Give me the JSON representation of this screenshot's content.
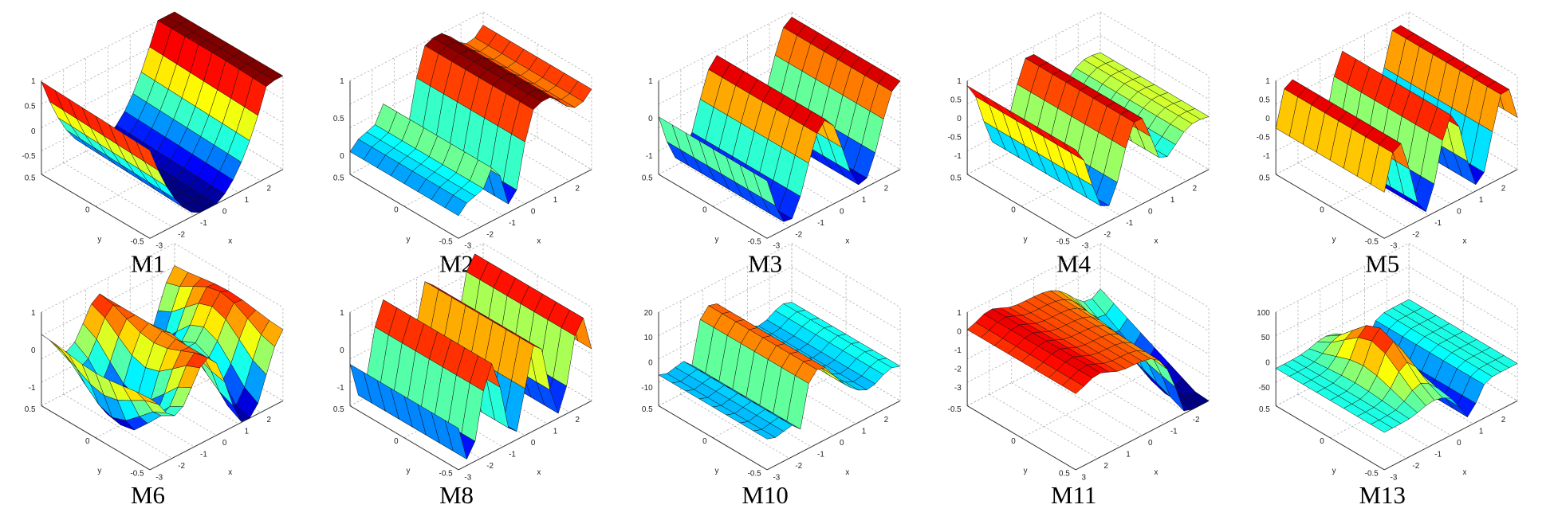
{
  "panels": [
    {
      "label": "M1",
      "zticks": [
        1,
        0.5,
        0,
        -0.5
      ],
      "yticks": [
        0.5,
        0,
        -0.5
      ],
      "xticks": [
        -3,
        -2,
        -1,
        0,
        1,
        2
      ],
      "xlabel": "x",
      "ylabel": "y"
    },
    {
      "label": "M2",
      "zticks": [
        1,
        0.5,
        0
      ],
      "yticks": [
        0.5,
        0,
        -0.5
      ],
      "xticks": [
        -3,
        -2,
        -1,
        0,
        1,
        2
      ],
      "xlabel": "x",
      "ylabel": "y"
    },
    {
      "label": "M3",
      "zticks": [
        1,
        0,
        -1
      ],
      "yticks": [
        0.5,
        0,
        -0.5
      ],
      "xticks": [
        -3,
        -2,
        -1,
        0,
        1,
        2
      ],
      "xlabel": "x",
      "ylabel": "y"
    },
    {
      "label": "M4",
      "zticks": [
        1,
        0.5,
        0,
        -0.5,
        -1
      ],
      "yticks": [
        0.5,
        0,
        -0.5
      ],
      "xticks": [
        -3,
        -2,
        -1,
        0,
        1,
        2
      ],
      "xlabel": "x",
      "ylabel": "y"
    },
    {
      "label": "M5",
      "zticks": [
        1,
        0.5,
        0,
        -0.5,
        -1
      ],
      "yticks": [
        0.5,
        0,
        -0.5
      ],
      "xticks": [
        -3,
        -2,
        -1,
        0,
        1,
        2
      ],
      "xlabel": "x",
      "ylabel": "y"
    },
    {
      "label": "M6",
      "zticks": [
        1,
        0,
        -1
      ],
      "yticks": [
        0.5,
        0,
        -0.5
      ],
      "xticks": [
        -3,
        -2,
        -1,
        0,
        1,
        2
      ],
      "xlabel": "x",
      "ylabel": "y"
    },
    {
      "label": "M8",
      "zticks": [
        1,
        0,
        -1
      ],
      "yticks": [
        0.5,
        0,
        -0.5
      ],
      "xticks": [
        -3,
        -2,
        -1,
        0,
        1,
        2
      ],
      "xlabel": "x",
      "ylabel": "y"
    },
    {
      "label": "M10",
      "zticks": [
        20,
        10,
        0,
        -10
      ],
      "yticks": [
        0.5,
        0,
        -0.5
      ],
      "xticks": [
        -3,
        -2,
        -1,
        0,
        1,
        2
      ],
      "xlabel": "x",
      "ylabel": "y"
    },
    {
      "label": "M11",
      "zticks": [
        1,
        0,
        -1,
        -2,
        -3
      ],
      "yticks": [
        -0.5,
        0,
        0.5
      ],
      "xticks": [
        3,
        2,
        1,
        0,
        -1,
        -2
      ],
      "xlabel": "x",
      "ylabel": "y"
    },
    {
      "label": "M13",
      "zticks": [
        100,
        50,
        0,
        -50
      ],
      "yticks": [
        0.5,
        0,
        -0.5
      ],
      "xticks": [
        -3,
        -2,
        -1,
        0,
        1,
        2
      ],
      "xlabel": "x",
      "ylabel": "y"
    }
  ]
}
